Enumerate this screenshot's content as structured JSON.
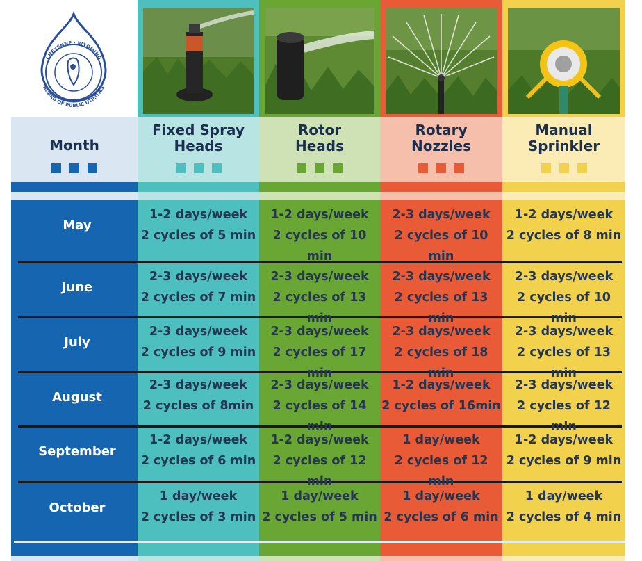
{
  "logo": {
    "ring_text_top": "CHEYENNE · WYOMING",
    "ring_text_bottom": "BOARD OF PUBLIC UTILITIES"
  },
  "header": {
    "month": "Month",
    "columns": [
      {
        "title_line1": "Fixed Spray",
        "title_line2": "Heads"
      },
      {
        "title_line1": "Rotor",
        "title_line2": "Heads"
      },
      {
        "title_line1": "Rotary",
        "title_line2": "Nozzles"
      },
      {
        "title_line1": "Manual",
        "title_line2": "Sprinkler"
      }
    ]
  },
  "rows": [
    {
      "month": "May",
      "cells": [
        {
          "days": "1-2 days/week",
          "cycles": "2 cycles of 5 min"
        },
        {
          "days": "1-2 days/week",
          "cycles": "2 cycles of 10 min"
        },
        {
          "days": "2-3 days/week",
          "cycles": "2 cycles of 10 min"
        },
        {
          "days": "1-2 days/week",
          "cycles": "2 cycles of 8 min"
        }
      ]
    },
    {
      "month": "June",
      "cells": [
        {
          "days": "2-3 days/week",
          "cycles": "2 cycles of 7 min"
        },
        {
          "days": "2-3 days/week",
          "cycles": "2 cycles of 13 min"
        },
        {
          "days": "2-3 days/week",
          "cycles": "2 cycles of 13 min"
        },
        {
          "days": "2-3 days/week",
          "cycles": "2 cycles of 10 min"
        }
      ]
    },
    {
      "month": "July",
      "cells": [
        {
          "days": "2-3 days/week",
          "cycles": "2 cycles of 9 min"
        },
        {
          "days": "2-3 days/week",
          "cycles": "2 cycles of 17 min"
        },
        {
          "days": "2-3 days/week",
          "cycles": "2 cycles of 18 min"
        },
        {
          "days": "2-3 days/week",
          "cycles": "2 cycles of 13 min"
        }
      ]
    },
    {
      "month": "August",
      "cells": [
        {
          "days": "2-3 days/week",
          "cycles": "2 cycles of 8min"
        },
        {
          "days": "2-3 days/week",
          "cycles": "2 cycles of 14 min"
        },
        {
          "days": "1-2 days/week",
          "cycles": "2 cycles of 16min"
        },
        {
          "days": "2-3 days/week",
          "cycles": "2 cycles of 12 min"
        }
      ]
    },
    {
      "month": "September",
      "cells": [
        {
          "days": "1-2 days/week",
          "cycles": "2 cycles of 6 min"
        },
        {
          "days": "1-2 days/week",
          "cycles": "2 cycles of 12 min"
        },
        {
          "days": "1 day/week",
          "cycles": "2 cycles of 12 min"
        },
        {
          "days": "1-2 days/week",
          "cycles": "2 cycles of 9 min"
        }
      ]
    },
    {
      "month": "October",
      "cells": [
        {
          "days": "1 day/week",
          "cycles": "2 cycles of 3 min"
        },
        {
          "days": "1 day/week",
          "cycles": "2 cycles of 5 min"
        },
        {
          "days": "1 day/week",
          "cycles": "2 cycles of 6 min"
        },
        {
          "days": "1 day/week",
          "cycles": "2 cycles of 4 min"
        }
      ]
    }
  ],
  "colors": {
    "month_column": "#1565b0",
    "fixed_spray": "#4dbfbf",
    "rotor": "#6aa633",
    "rotary": "#e95b36",
    "manual": "#f2d24c"
  }
}
